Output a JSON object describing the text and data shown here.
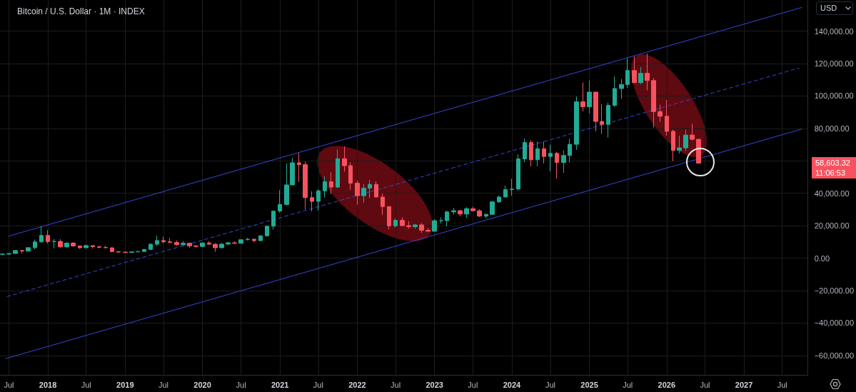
{
  "chart_data": {
    "type": "candlestick",
    "title": "Bitcoin / U.S. Dollar · 1M · INDEX",
    "ylabel": "USD",
    "x": [
      "2017-06",
      "2017-07",
      "2017-08",
      "2017-09",
      "2017-10",
      "2017-11",
      "2017-12",
      "2018-01",
      "2018-02",
      "2018-03",
      "2018-04",
      "2018-05",
      "2018-06",
      "2018-07",
      "2018-08",
      "2018-09",
      "2018-10",
      "2018-11",
      "2018-12",
      "2019-01",
      "2019-02",
      "2019-03",
      "2019-04",
      "2019-05",
      "2019-06",
      "2019-07",
      "2019-08",
      "2019-09",
      "2019-10",
      "2019-11",
      "2019-12",
      "2020-01",
      "2020-02",
      "2020-03",
      "2020-04",
      "2020-05",
      "2020-06",
      "2020-07",
      "2020-08",
      "2020-09",
      "2020-10",
      "2020-11",
      "2020-12",
      "2021-01",
      "2021-02",
      "2021-03",
      "2021-04",
      "2021-05",
      "2021-06",
      "2021-07",
      "2021-08",
      "2021-09",
      "2021-10",
      "2021-11",
      "2021-12",
      "2022-01",
      "2022-02",
      "2022-03",
      "2022-04",
      "2022-05",
      "2022-06",
      "2022-07",
      "2022-08",
      "2022-09",
      "2022-10",
      "2022-11",
      "2022-12",
      "2023-01",
      "2023-02",
      "2023-03",
      "2023-04",
      "2023-05",
      "2023-06",
      "2023-07",
      "2023-08",
      "2023-09",
      "2023-10",
      "2023-11",
      "2023-12",
      "2024-01",
      "2024-02",
      "2024-03",
      "2024-04",
      "2024-05",
      "2024-06",
      "2024-07",
      "2024-08",
      "2024-09",
      "2024-10",
      "2024-11",
      "2024-12",
      "2025-01",
      "2025-02",
      "2025-03",
      "2025-04",
      "2025-05",
      "2025-06",
      "2025-07",
      "2025-08",
      "2025-09",
      "2025-10",
      "2025-11",
      "2025-12",
      "2026-01",
      "2026-02",
      "2026-03",
      "2026-04",
      "2026-05",
      "2026-06"
    ],
    "ohlc": [
      [
        2300,
        2980,
        1850,
        2480
      ],
      [
        2480,
        2920,
        1830,
        2875
      ],
      [
        2875,
        4770,
        2670,
        4700
      ],
      [
        4700,
        4980,
        2950,
        4340
      ],
      [
        4340,
        6470,
        4100,
        6450
      ],
      [
        6450,
        11400,
        5500,
        10000
      ],
      [
        10000,
        19700,
        9800,
        14000
      ],
      [
        14000,
        17200,
        9000,
        10200
      ],
      [
        10200,
        11800,
        6000,
        10300
      ],
      [
        10300,
        11700,
        6600,
        6900
      ],
      [
        6900,
        9800,
        6400,
        9250
      ],
      [
        9250,
        9990,
        7000,
        7500
      ],
      [
        7500,
        7780,
        5750,
        6400
      ],
      [
        6400,
        8500,
        6100,
        7730
      ],
      [
        7730,
        7750,
        5880,
        7020
      ],
      [
        7020,
        7400,
        6100,
        6630
      ],
      [
        6630,
        7680,
        6200,
        6370
      ],
      [
        6370,
        6600,
        3550,
        4040
      ],
      [
        4040,
        4230,
        3120,
        3740
      ],
      [
        3740,
        4100,
        3350,
        3460
      ],
      [
        3460,
        4200,
        3390,
        3850
      ],
      [
        3850,
        4140,
        3700,
        4100
      ],
      [
        4100,
        5640,
        4060,
        5350
      ],
      [
        5350,
        9100,
        5330,
        8570
      ],
      [
        8570,
        13880,
        7450,
        10820
      ],
      [
        10820,
        13200,
        9050,
        10080
      ],
      [
        10080,
        12330,
        9340,
        9630
      ],
      [
        9630,
        10950,
        7700,
        8300
      ],
      [
        8300,
        10540,
        7300,
        9200
      ],
      [
        9200,
        9520,
        6400,
        7560
      ],
      [
        7560,
        7750,
        6430,
        7200
      ],
      [
        7200,
        9580,
        6870,
        9350
      ],
      [
        9350,
        10500,
        8450,
        8540
      ],
      [
        8540,
        9200,
        3850,
        6420
      ],
      [
        6420,
        9470,
        6150,
        8630
      ],
      [
        8630,
        10070,
        8100,
        9450
      ],
      [
        9450,
        10400,
        8900,
        9140
      ],
      [
        9140,
        11450,
        8970,
        11340
      ],
      [
        11340,
        12490,
        10970,
        11650
      ],
      [
        11650,
        12080,
        9900,
        10780
      ],
      [
        10780,
        14100,
        10400,
        13800
      ],
      [
        13800,
        19900,
        13200,
        19700
      ],
      [
        19700,
        29300,
        17600,
        29000
      ],
      [
        29000,
        41950,
        28100,
        33100
      ],
      [
        33100,
        58350,
        32300,
        45150
      ],
      [
        45150,
        61800,
        45000,
        58800
      ],
      [
        58800,
        64900,
        47000,
        57700
      ],
      [
        57700,
        59500,
        30000,
        37300
      ],
      [
        37300,
        41300,
        28800,
        35000
      ],
      [
        35000,
        42400,
        29300,
        41500
      ],
      [
        41500,
        50500,
        37300,
        47100
      ],
      [
        47100,
        52900,
        39600,
        43800
      ],
      [
        43800,
        67000,
        43300,
        61300
      ],
      [
        61300,
        69000,
        53300,
        57000
      ],
      [
        57000,
        59100,
        42000,
        46200
      ],
      [
        46200,
        47900,
        32900,
        38500
      ],
      [
        38500,
        45800,
        34300,
        43200
      ],
      [
        43200,
        48200,
        37200,
        45500
      ],
      [
        45500,
        47400,
        37600,
        37700
      ],
      [
        37700,
        40000,
        26700,
        31800
      ],
      [
        31800,
        31900,
        17600,
        19900
      ],
      [
        19900,
        24600,
        18800,
        23300
      ],
      [
        23300,
        25200,
        19600,
        20000
      ],
      [
        20000,
        22800,
        18200,
        19400
      ],
      [
        19400,
        21000,
        18200,
        20500
      ],
      [
        20500,
        21500,
        15500,
        17200
      ],
      [
        17200,
        18400,
        16300,
        16550
      ],
      [
        16550,
        23900,
        16500,
        23100
      ],
      [
        23100,
        25200,
        21400,
        23150
      ],
      [
        23150,
        29200,
        19600,
        28500
      ],
      [
        28500,
        31000,
        26900,
        29250
      ],
      [
        29250,
        29800,
        25800,
        27200
      ],
      [
        27200,
        31400,
        24800,
        30500
      ],
      [
        30500,
        31800,
        28900,
        29200
      ],
      [
        29200,
        30200,
        25300,
        25900
      ],
      [
        25900,
        27500,
        24700,
        27000
      ],
      [
        27000,
        35200,
        26600,
        34700
      ],
      [
        34700,
        38500,
        34100,
        37700
      ],
      [
        37700,
        44700,
        37600,
        42300
      ],
      [
        42300,
        48900,
        38500,
        42600
      ],
      [
        42600,
        64000,
        41900,
        61200
      ],
      [
        61200,
        73800,
        59100,
        71300
      ],
      [
        71300,
        72800,
        56500,
        60700
      ],
      [
        60700,
        72000,
        56600,
        67500
      ],
      [
        67500,
        72000,
        58400,
        62700
      ],
      [
        62700,
        70000,
        53500,
        64600
      ],
      [
        64600,
        65600,
        49000,
        59000
      ],
      [
        59000,
        66500,
        52600,
        63300
      ],
      [
        63300,
        73600,
        58900,
        70200
      ],
      [
        70200,
        99600,
        66800,
        96400
      ],
      [
        96400,
        108300,
        90500,
        93400
      ],
      [
        93400,
        109600,
        89200,
        102400
      ],
      [
        102400,
        102500,
        78200,
        84300
      ],
      [
        84300,
        95000,
        76600,
        82500
      ],
      [
        82500,
        95800,
        74400,
        94200
      ],
      [
        94200,
        112000,
        93400,
        104600
      ],
      [
        104600,
        110500,
        98200,
        107100
      ],
      [
        107100,
        123200,
        105100,
        115700
      ],
      [
        115700,
        124500,
        108000,
        108200
      ],
      [
        108200,
        117900,
        107300,
        114000
      ],
      [
        114000,
        126200,
        103500,
        109500
      ],
      [
        109500,
        111000,
        80500,
        90400
      ],
      [
        90400,
        94600,
        84000,
        87500
      ],
      [
        87500,
        97600,
        75500,
        78200
      ],
      [
        78200,
        79200,
        59800,
        66400
      ],
      [
        66400,
        75500,
        64500,
        68000
      ],
      [
        68000,
        79200,
        66000,
        75900
      ],
      [
        75900,
        82900,
        72500,
        73300
      ],
      [
        73300,
        73500,
        58400,
        58603.32
      ]
    ],
    "colors": [
      "#22ab94",
      "#22ab94",
      "#22ab94",
      "#f7525f",
      "#22ab94",
      "#22ab94",
      "#22ab94",
      "#f7525f",
      "#22ab94",
      "#f7525f",
      "#22ab94",
      "#f7525f",
      "#f7525f",
      "#22ab94",
      "#f7525f",
      "#f7525f",
      "#f7525f",
      "#f7525f",
      "#f7525f",
      "#f7525f",
      "#22ab94",
      "#22ab94",
      "#22ab94",
      "#22ab94",
      "#22ab94",
      "#f7525f",
      "#f7525f",
      "#f7525f",
      "#22ab94",
      "#f7525f",
      "#f7525f",
      "#22ab94",
      "#f7525f",
      "#f7525f",
      "#22ab94",
      "#22ab94",
      "#f7525f",
      "#22ab94",
      "#22ab94",
      "#f7525f",
      "#22ab94",
      "#22ab94",
      "#22ab94",
      "#22ab94",
      "#22ab94",
      "#22ab94",
      "#f7525f",
      "#f7525f",
      "#f7525f",
      "#22ab94",
      "#22ab94",
      "#f7525f",
      "#22ab94",
      "#f7525f",
      "#f7525f",
      "#f7525f",
      "#22ab94",
      "#22ab94",
      "#f7525f",
      "#f7525f",
      "#f7525f",
      "#22ab94",
      "#f7525f",
      "#f7525f",
      "#22ab94",
      "#f7525f",
      "#f7525f",
      "#22ab94",
      "#22ab94",
      "#22ab94",
      "#22ab94",
      "#f7525f",
      "#22ab94",
      "#f7525f",
      "#f7525f",
      "#22ab94",
      "#22ab94",
      "#22ab94",
      "#22ab94",
      "#22ab94",
      "#22ab94",
      "#22ab94",
      "#f7525f",
      "#22ab94",
      "#f7525f",
      "#22ab94",
      "#f7525f",
      "#22ab94",
      "#22ab94",
      "#22ab94",
      "#f7525f",
      "#22ab94",
      "#f7525f",
      "#f7525f",
      "#22ab94",
      "#22ab94",
      "#22ab94",
      "#22ab94",
      "#f7525f",
      "#22ab94",
      "#f7525f",
      "#f7525f",
      "#f7525f",
      "#f7525f",
      "#f7525f",
      "#22ab94",
      "#22ab94",
      "#f7525f",
      "#f7525f"
    ],
    "series": [
      {
        "type": "line",
        "x": [
          "2017-07-01",
          "2027-10-01"
        ],
        "values": [
          13600,
          154600
        ],
        "color": "#3349d6"
      },
      {
        "type": "line",
        "x": [
          "2017-06-22",
          "2027-09-17"
        ],
        "values": [
          -23700,
          117200
        ],
        "color": "#3349d6",
        "line_style": "dashed"
      },
      {
        "type": "line",
        "x": [
          "2017-06-15",
          "2027-10-01"
        ],
        "values": [
          -62000,
          79600
        ],
        "color": "#3349d6"
      }
    ],
    "xlim": [
      "2017-05-20",
      "2027-10-30"
    ],
    "ylim": [
      -72000,
      159200
    ],
    "xticks": [
      {
        "value": "2017-07",
        "label": "Jul"
      },
      "2018",
      {
        "value": "2018-07",
        "label": "Jul"
      },
      "2019",
      {
        "value": "2019-07",
        "label": "Jul"
      },
      "2020",
      {
        "value": "2020-07",
        "label": "Jul"
      },
      "2021",
      {
        "value": "2021-07",
        "label": "Jul"
      },
      "2022",
      {
        "value": "2022-07",
        "label": "Jul"
      },
      "2023",
      {
        "value": "2023-07",
        "label": "Jul"
      },
      "2024",
      {
        "value": "2024-07",
        "label": "Jul"
      },
      "2025",
      {
        "value": "2025-07",
        "label": "Jul"
      },
      "2026",
      {
        "value": "2026-07",
        "label": "Jul"
      },
      "2027",
      {
        "value": "2027-07",
        "label": "Jul"
      }
    ],
    "yticks": [
      {
        "value": -60000,
        "label": "−60,000.00"
      },
      {
        "value": -40000,
        "label": "−40,000.00"
      },
      {
        "value": -20000,
        "label": "−20,000.00"
      },
      {
        "value": 0,
        "label": "0.00"
      },
      {
        "value": 20000,
        "label": "20,000.00"
      },
      {
        "value": 40000,
        "label": "40,000.00"
      },
      {
        "value": 60000,
        "label": null
      },
      {
        "value": 80000,
        "label": "80,000.00"
      },
      {
        "value": 100000,
        "label": "100,000.00"
      },
      {
        "value": 120000,
        "label": "120,000.00"
      },
      {
        "value": 140000,
        "label": "140,000.00"
      }
    ],
    "grid": true,
    "annotations": [
      "58,603.32",
      "11:06:53"
    ]
  }
}
